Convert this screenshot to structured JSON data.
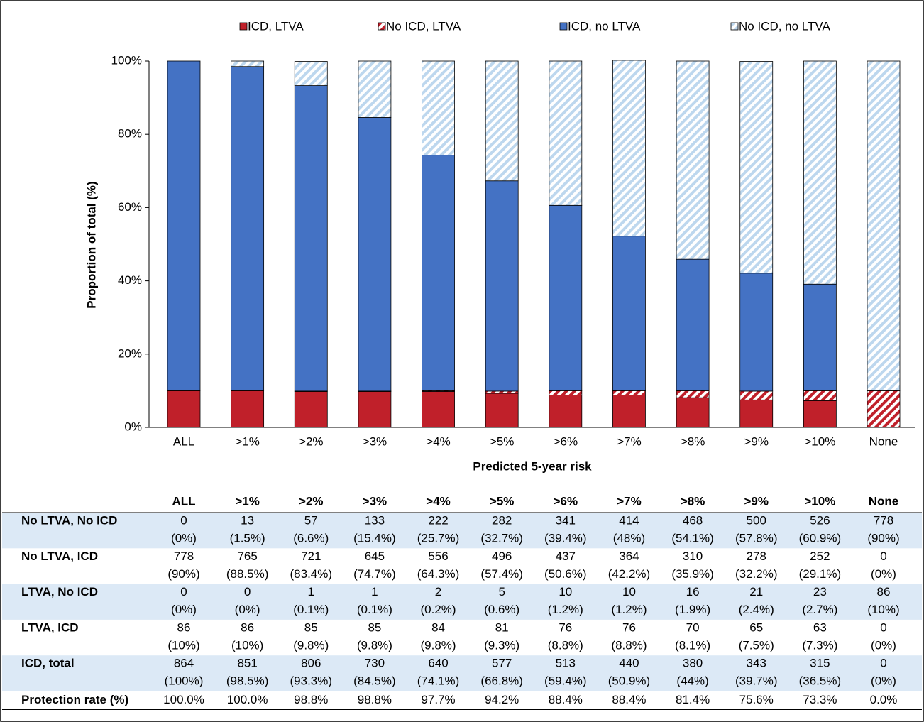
{
  "chart_data": {
    "type": "stacked_bar_100",
    "x_label": "Predicted 5-year risk",
    "y_label": "Proportion of total (%)",
    "categories": [
      "ALL",
      ">1%",
      ">2%",
      ">3%",
      ">4%",
      ">5%",
      ">6%",
      ">7%",
      ">8%",
      ">9%",
      ">10%",
      "None"
    ],
    "series": [
      {
        "name": "ICD, LTVA",
        "color": "#c0202a",
        "hatch": false,
        "values": [
          10,
          10,
          9.8,
          9.8,
          9.8,
          9.3,
          8.8,
          8.8,
          8.1,
          7.5,
          7.3,
          0
        ]
      },
      {
        "name": "No ICD, LTVA",
        "color": "#c0202a",
        "hatch": true,
        "values": [
          0,
          0,
          0.1,
          0.1,
          0.2,
          0.6,
          1.2,
          1.2,
          1.9,
          2.4,
          2.7,
          10
        ]
      },
      {
        "name": "ICD, no LTVA",
        "color": "#4472c4",
        "hatch": false,
        "values": [
          90,
          88.5,
          83.4,
          74.7,
          64.3,
          57.4,
          50.6,
          42.2,
          35.9,
          32.2,
          29.1,
          0
        ]
      },
      {
        "name": "No ICD, no LTVA",
        "color": "#bdd7ee",
        "hatch": true,
        "values": [
          0,
          1.5,
          6.6,
          15.4,
          25.7,
          32.7,
          39.4,
          48,
          54.1,
          57.8,
          60.9,
          90
        ]
      }
    ],
    "ylim": [
      0,
      100
    ],
    "yticks": [
      {
        "value": 0,
        "label": "0%"
      },
      {
        "value": 20,
        "label": "20%"
      },
      {
        "value": 40,
        "label": "40%"
      },
      {
        "value": 60,
        "label": "60%"
      },
      {
        "value": 80,
        "label": "80%"
      },
      {
        "value": 100,
        "label": "100%"
      }
    ],
    "grid": false,
    "legend": "top"
  },
  "table": {
    "columns": [
      "ALL",
      ">1%",
      ">2%",
      ">3%",
      ">4%",
      ">5%",
      ">6%",
      ">7%",
      ">8%",
      ">9%",
      ">10%",
      "None"
    ],
    "rows": [
      {
        "label": "No LTVA, No ICD",
        "counts": [
          "0",
          "13",
          "57",
          "133",
          "222",
          "282",
          "341",
          "414",
          "468",
          "500",
          "526",
          "778"
        ],
        "percents": [
          "(0%)",
          "(1.5%)",
          "(6.6%)",
          "(15.4%)",
          "(25.7%)",
          "(32.7%)",
          "(39.4%)",
          "(48%)",
          "(54.1%)",
          "(57.8%)",
          "(60.9%)",
          "(90%)"
        ]
      },
      {
        "label": "No LTVA, ICD",
        "counts": [
          "778",
          "765",
          "721",
          "645",
          "556",
          "496",
          "437",
          "364",
          "310",
          "278",
          "252",
          "0"
        ],
        "percents": [
          "(90%)",
          "(88.5%)",
          "(83.4%)",
          "(74.7%)",
          "(64.3%)",
          "(57.4%)",
          "(50.6%)",
          "(42.2%)",
          "(35.9%)",
          "(32.2%)",
          "(29.1%)",
          "(0%)"
        ]
      },
      {
        "label": "LTVA, No ICD",
        "counts": [
          "0",
          "0",
          "1",
          "1",
          "2",
          "5",
          "10",
          "10",
          "16",
          "21",
          "23",
          "86"
        ],
        "percents": [
          "(0%)",
          "(0%)",
          "(0.1%)",
          "(0.1%)",
          "(0.2%)",
          "(0.6%)",
          "(1.2%)",
          "(1.2%)",
          "(1.9%)",
          "(2.4%)",
          "(2.7%)",
          "(10%)"
        ]
      },
      {
        "label": "LTVA, ICD",
        "counts": [
          "86",
          "86",
          "85",
          "85",
          "84",
          "81",
          "76",
          "76",
          "70",
          "65",
          "63",
          "0"
        ],
        "percents": [
          "(10%)",
          "(10%)",
          "(9.8%)",
          "(9.8%)",
          "(9.8%)",
          "(9.3%)",
          "(8.8%)",
          "(8.8%)",
          "(8.1%)",
          "(7.5%)",
          "(7.3%)",
          "(0%)"
        ]
      },
      {
        "label": "ICD, total",
        "counts": [
          "864",
          "851",
          "806",
          "730",
          "640",
          "577",
          "513",
          "440",
          "380",
          "343",
          "315",
          "0"
        ],
        "percents": [
          "(100%)",
          "(98.5%)",
          "(93.3%)",
          "(84.5%)",
          "(74.1%)",
          "(66.8%)",
          "(59.4%)",
          "(50.9%)",
          "(44%)",
          "(39.7%)",
          "(36.5%)",
          "(0%)"
        ]
      }
    ],
    "protection_rate": {
      "label": "Protection rate (%)",
      "values": [
        "100.0%",
        "100.0%",
        "98.8%",
        "98.8%",
        "97.7%",
        "94.2%",
        "88.4%",
        "88.4%",
        "81.4%",
        "75.6%",
        "73.3%",
        "0.0%"
      ]
    }
  }
}
